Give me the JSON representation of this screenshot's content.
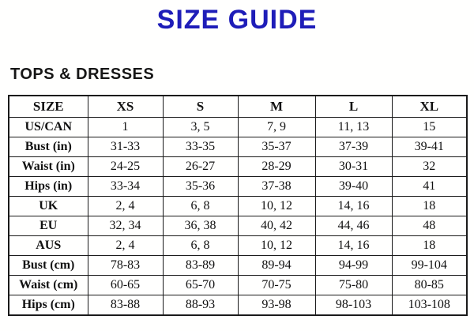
{
  "page": {
    "title": "SIZE GUIDE",
    "section_heading": "TOPS & DRESSES"
  },
  "colors": {
    "title_blue": "#1e1db8",
    "table_border": "#1a1a1a",
    "text": "#111111",
    "background": "#fffffe"
  },
  "chart_data": {
    "type": "table",
    "title": "SIZE GUIDE",
    "subtitle": "TOPS & DRESSES",
    "columns": [
      "SIZE",
      "XS",
      "S",
      "M",
      "L",
      "XL"
    ],
    "rows": [
      {
        "label": "US/CAN",
        "values": [
          "1",
          "3, 5",
          "7, 9",
          "11, 13",
          "15"
        ]
      },
      {
        "label": "Bust (in)",
        "values": [
          "31-33",
          "33-35",
          "35-37",
          "37-39",
          "39-41"
        ]
      },
      {
        "label": "Waist (in)",
        "values": [
          "24-25",
          "26-27",
          "28-29",
          "30-31",
          "32"
        ]
      },
      {
        "label": "Hips (in)",
        "values": [
          "33-34",
          "35-36",
          "37-38",
          "39-40",
          "41"
        ]
      },
      {
        "label": "UK",
        "values": [
          "2, 4",
          "6, 8",
          "10, 12",
          "14, 16",
          "18"
        ]
      },
      {
        "label": "EU",
        "values": [
          "32, 34",
          "36, 38",
          "40, 42",
          "44, 46",
          "48"
        ]
      },
      {
        "label": "AUS",
        "values": [
          "2, 4",
          "6, 8",
          "10, 12",
          "14, 16",
          "18"
        ]
      },
      {
        "label": "Bust (cm)",
        "values": [
          "78-83",
          "83-89",
          "89-94",
          "94-99",
          "99-104"
        ]
      },
      {
        "label": "Waist (cm)",
        "values": [
          "60-65",
          "65-70",
          "70-75",
          "75-80",
          "80-85"
        ]
      },
      {
        "label": "Hips (cm)",
        "values": [
          "83-88",
          "88-93",
          "93-98",
          "98-103",
          "103-108"
        ]
      }
    ]
  }
}
